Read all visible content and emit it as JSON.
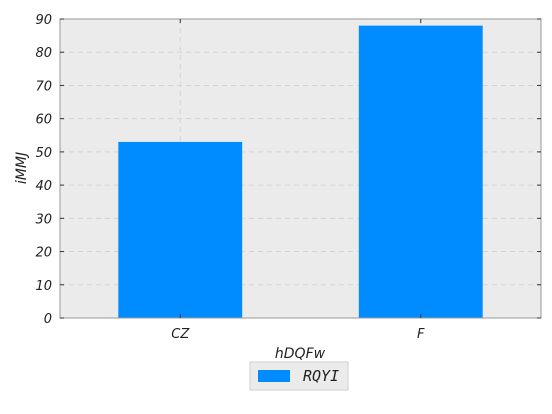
{
  "chart_data": {
    "type": "bar",
    "categories": [
      "CZ",
      "F"
    ],
    "series": [
      {
        "name": "RQYI",
        "values": [
          53,
          88
        ]
      }
    ],
    "xlabel": "hDQFw",
    "ylabel": "iMMJ",
    "ylim": [
      0,
      90
    ],
    "yticks": [
      0,
      10,
      20,
      30,
      40,
      50,
      60,
      70,
      80,
      90
    ],
    "grid": true,
    "legend_position": "bottom-center",
    "colors": {
      "bar": "#008cff",
      "plot_background": "#ebebeb",
      "grid": "#d4d4d4",
      "frame": "#9a9a9a"
    }
  }
}
